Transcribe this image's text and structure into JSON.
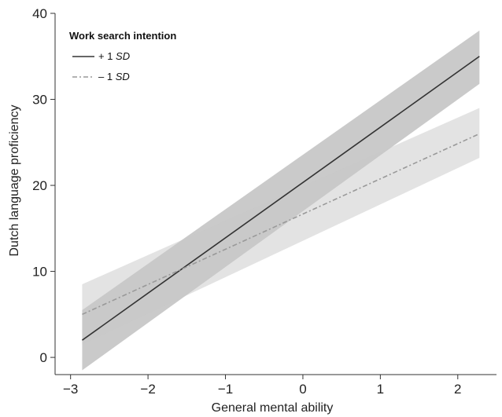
{
  "chart_data": {
    "type": "line",
    "xlabel": "General mental ability",
    "ylabel": "Dutch language proficiency",
    "xlim": [
      -3.2,
      2.5
    ],
    "ylim": [
      -2,
      40
    ],
    "xticks": [
      -3,
      -2,
      -1,
      0,
      1,
      2
    ],
    "xtick_labels": [
      "−3",
      "−2",
      "−1",
      "0",
      "1",
      "2"
    ],
    "yticks": [
      0,
      10,
      20,
      30,
      40
    ],
    "ytick_labels": [
      "0",
      "10",
      "20",
      "30",
      "40"
    ],
    "grid": false,
    "legend_placement": "top-left",
    "legend": {
      "title": "Work search intention",
      "items": [
        {
          "sign": "+ 1 ",
          "sd": "SD"
        },
        {
          "sign": "– 1 ",
          "sd": "SD"
        }
      ]
    },
    "series": [
      {
        "x": [
          -2.85,
          2.28
        ],
        "y": [
          2.0,
          35.0
        ],
        "ci_lower": [
          -1.5,
          31.8
        ],
        "ci_upper": [
          5.5,
          38.0
        ],
        "color": "#333333",
        "band_color": "#7a7a7a",
        "band_opacity": 0.4,
        "dash": "solid"
      },
      {
        "x": [
          -2.85,
          2.28
        ],
        "y": [
          5.0,
          26.0
        ],
        "ci_lower": [
          1.5,
          23.2
        ],
        "ci_upper": [
          8.5,
          29.0
        ],
        "color": "#999999",
        "band_color": "#c8c8c8",
        "band_opacity": 0.5,
        "dash": "dashed"
      }
    ]
  }
}
